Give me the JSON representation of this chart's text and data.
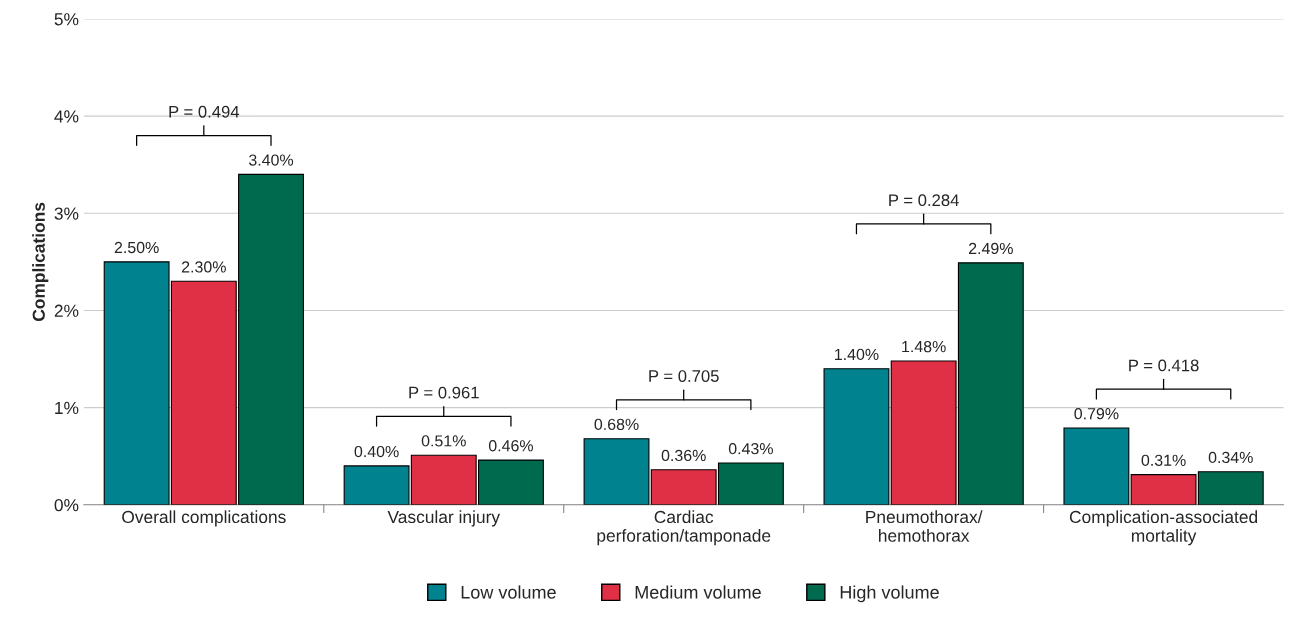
{
  "chart_data": {
    "type": "bar",
    "ylabel": "Complications",
    "categories": [
      "Overall complications",
      "Vascular injury",
      "Cardiac\nperforation/tamponade",
      "Pneumothorax/\nhemothorax",
      "Complication-associated\nmortality"
    ],
    "series": [
      {
        "name": "Low volume",
        "color": "#00838f",
        "values": [
          2.5,
          0.4,
          0.68,
          1.4,
          0.79
        ],
        "value_labels": [
          "2.50%",
          "0.40%",
          "0.68%",
          "1.40%",
          "0.79%"
        ]
      },
      {
        "name": "Medium volume",
        "color": "#e03046",
        "values": [
          2.3,
          0.51,
          0.36,
          1.48,
          0.31
        ],
        "value_labels": [
          "2.30%",
          "0.51%",
          "0.36%",
          "1.48%",
          "0.31%"
        ]
      },
      {
        "name": "High volume",
        "color": "#006a4e",
        "values": [
          3.4,
          0.46,
          0.43,
          2.49,
          0.34
        ],
        "value_labels": [
          "3.40%",
          "0.46%",
          "0.43%",
          "2.49%",
          "0.34%"
        ]
      }
    ],
    "ylim": [
      0,
      5
    ],
    "yticks": [
      {
        "value": 0,
        "label": "0%"
      },
      {
        "value": 1,
        "label": "1%"
      },
      {
        "value": 2,
        "label": "2%"
      },
      {
        "value": 3,
        "label": "3%"
      },
      {
        "value": 4,
        "label": "4%"
      },
      {
        "value": 5,
        "label": "5%"
      }
    ],
    "grid": "y",
    "legend": "bottom",
    "annotations": [
      "P = 0.494",
      "P = 0.961",
      "P = 0.705",
      "P = 0.284",
      "P = 0.418"
    ]
  }
}
